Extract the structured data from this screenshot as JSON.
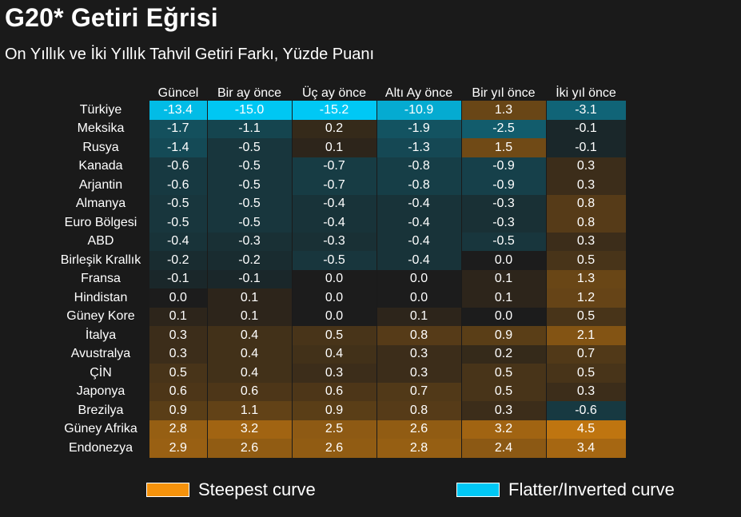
{
  "title": "G20* Getiri Eğrisi",
  "subtitle": "On Yıllık ve İki Yıllık Tahvil Getiri Farkı, Yüzde Puanı",
  "colors": {
    "background": "#1a1a1a",
    "steep": "#f5920c",
    "flat": "#00c8f5",
    "neutral": "#1c1c1c"
  },
  "chart_data": {
    "type": "heatmap",
    "title": "G20* Getiri Eğrisi",
    "subtitle": "On Yıllık ve İki Yıllık Tahvil Getiri Farkı, Yüzde Puanı",
    "columns": [
      "Güncel",
      "Bir ay önce",
      "Üç ay önce",
      "Altı Ay önce",
      "Bir yıl önce",
      "İki yıl önce"
    ],
    "rows": [
      {
        "label": "Türkiye",
        "values": [
          "-13.4",
          "-15.0",
          "-15.2",
          "-10.9",
          "1.3",
          "-3.1"
        ]
      },
      {
        "label": "Meksika",
        "values": [
          "-1.7",
          "-1.1",
          "0.2",
          "-1.9",
          "-2.5",
          "-0.1"
        ]
      },
      {
        "label": "Rusya",
        "values": [
          "-1.4",
          "-0.5",
          "0.1",
          "-1.3",
          "1.5",
          "-0.1"
        ]
      },
      {
        "label": "Kanada",
        "values": [
          "-0.6",
          "-0.5",
          "-0.7",
          "-0.8",
          "-0.9",
          "0.3"
        ]
      },
      {
        "label": "Arjantin",
        "values": [
          "-0.6",
          "-0.5",
          "-0.7",
          "-0.8",
          "-0.9",
          "0.3"
        ]
      },
      {
        "label": "Almanya",
        "values": [
          "-0.5",
          "-0.5",
          "-0.4",
          "-0.4",
          "-0.3",
          "0.8"
        ]
      },
      {
        "label": "Euro Bölgesi",
        "values": [
          "-0.5",
          "-0.5",
          "-0.4",
          "-0.4",
          "-0.3",
          "0.8"
        ]
      },
      {
        "label": "ABD",
        "values": [
          "-0.4",
          "-0.3",
          "-0.3",
          "-0.4",
          "-0.5",
          "0.3"
        ]
      },
      {
        "label": "Birleşik Krallık",
        "values": [
          "-0.2",
          "-0.2",
          "-0.5",
          "-0.4",
          "0.0",
          "0.5"
        ]
      },
      {
        "label": "Fransa",
        "values": [
          "-0.1",
          "-0.1",
          "0.0",
          "0.0",
          "0.1",
          "1.3"
        ]
      },
      {
        "label": "Hindistan",
        "values": [
          "0.0",
          "0.1",
          "0.0",
          "0.0",
          "0.1",
          "1.2"
        ]
      },
      {
        "label": "Güney Kore",
        "values": [
          "0.1",
          "0.1",
          "0.0",
          "0.1",
          "0.0",
          "0.5"
        ]
      },
      {
        "label": "İtalya",
        "values": [
          "0.3",
          "0.4",
          "0.5",
          "0.8",
          "0.9",
          "2.1"
        ]
      },
      {
        "label": "Avustralya",
        "values": [
          "0.3",
          "0.4",
          "0.4",
          "0.3",
          "0.2",
          "0.7"
        ]
      },
      {
        "label": "ÇİN",
        "values": [
          "0.5",
          "0.4",
          "0.3",
          "0.3",
          "0.5",
          "0.5"
        ]
      },
      {
        "label": "Japonya",
        "values": [
          "0.6",
          "0.6",
          "0.6",
          "0.7",
          "0.5",
          "0.3"
        ]
      },
      {
        "label": "Brezilya",
        "values": [
          "0.9",
          "1.1",
          "0.9",
          "0.8",
          "0.3",
          "-0.6"
        ]
      },
      {
        "label": "Güney Afrika",
        "values": [
          "2.8",
          "3.2",
          "2.5",
          "2.6",
          "3.2",
          "4.5"
        ]
      },
      {
        "label": "Endonezya",
        "values": [
          "2.9",
          "2.6",
          "2.6",
          "2.8",
          "2.4",
          "3.4"
        ]
      }
    ],
    "legend": [
      {
        "label": "Steepest curve",
        "color": "#f5920c"
      },
      {
        "label": "Flatter/Inverted curve",
        "color": "#00c8f5"
      }
    ],
    "legend_position": "bottom"
  }
}
